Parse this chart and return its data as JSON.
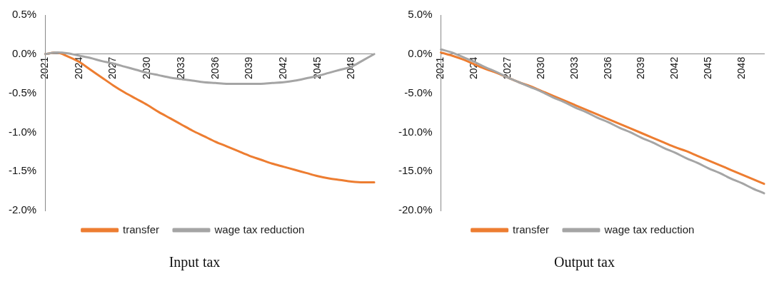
{
  "chart_data": [
    {
      "type": "line",
      "title": "Input tax",
      "categories": [
        "2021",
        null,
        null,
        "2024",
        null,
        null,
        "2027",
        null,
        null,
        "2030",
        null,
        null,
        "2033",
        null,
        null,
        "2036",
        null,
        null,
        "2039",
        null,
        null,
        "2042",
        null,
        null,
        "2045",
        null,
        null,
        "2048",
        null,
        null
      ],
      "series": [
        {
          "name": "transfer",
          "color": "#ed7d31",
          "values": [
            0,
            0.02,
            -0.03,
            -0.1,
            -0.2,
            -0.3,
            -0.4,
            -0.49,
            -0.57,
            -0.65,
            -0.74,
            -0.82,
            -0.9,
            -0.98,
            -1.05,
            -1.12,
            -1.18,
            -1.24,
            -1.3,
            -1.35,
            -1.4,
            -1.44,
            -1.48,
            -1.52,
            -1.56,
            -1.59,
            -1.61,
            -1.63,
            -1.64,
            -1.64
          ]
        },
        {
          "name": "wage tax reduction",
          "color": "#a5a5a5",
          "values": [
            0,
            0.02,
            0.01,
            -0.02,
            -0.05,
            -0.09,
            -0.12,
            -0.16,
            -0.2,
            -0.24,
            -0.27,
            -0.3,
            -0.32,
            -0.34,
            -0.36,
            -0.37,
            -0.38,
            -0.38,
            -0.38,
            -0.38,
            -0.37,
            -0.36,
            -0.34,
            -0.31,
            -0.28,
            -0.24,
            -0.2,
            -0.16,
            -0.08,
            0
          ]
        }
      ],
      "ylim": [
        -2,
        0.5
      ],
      "yticks": [
        {
          "value": -2,
          "label": "-2.0%"
        },
        {
          "value": -1.5,
          "label": "-1.5%"
        },
        {
          "value": -1,
          "label": "-1.0%"
        },
        {
          "value": -0.5,
          "label": "-0.5%"
        },
        {
          "value": 0,
          "label": "0.0%"
        },
        {
          "value": 0.5,
          "label": "0.5%"
        }
      ],
      "grid": false,
      "legend": "bottom",
      "marker": "none"
    },
    {
      "type": "line",
      "title": "Output tax",
      "categories": [
        "2021",
        null,
        null,
        "2024",
        null,
        null,
        "2027",
        null,
        null,
        "2030",
        null,
        null,
        "2033",
        null,
        null,
        "2036",
        null,
        null,
        "2039",
        null,
        null,
        "2042",
        null,
        null,
        "2045",
        null,
        null,
        "2048",
        null,
        null
      ],
      "series": [
        {
          "name": "transfer",
          "color": "#ed7d31",
          "values": [
            0.2,
            -0.2,
            -0.7,
            -1.3,
            -1.9,
            -2.4,
            -3.0,
            -3.6,
            -4.1,
            -4.7,
            -5.3,
            -5.9,
            -6.5,
            -7.1,
            -7.7,
            -8.3,
            -8.9,
            -9.5,
            -10.1,
            -10.7,
            -11.3,
            -11.9,
            -12.4,
            -13.0,
            -13.6,
            -14.2,
            -14.8,
            -15.4,
            -16.0,
            -16.6
          ]
        },
        {
          "name": "wage tax reduction",
          "color": "#a5a5a5",
          "values": [
            0.6,
            0.2,
            -0.4,
            -1.0,
            -1.7,
            -2.3,
            -3.0,
            -3.6,
            -4.2,
            -4.8,
            -5.5,
            -6.1,
            -6.8,
            -7.4,
            -8.1,
            -8.7,
            -9.4,
            -10.0,
            -10.7,
            -11.3,
            -12.0,
            -12.6,
            -13.3,
            -13.9,
            -14.6,
            -15.2,
            -15.9,
            -16.5,
            -17.2,
            -17.8
          ]
        }
      ],
      "ylim": [
        -20,
        5
      ],
      "yticks": [
        {
          "value": -20,
          "label": "-20.0%"
        },
        {
          "value": -15,
          "label": "-15.0%"
        },
        {
          "value": -10,
          "label": "-10.0%"
        },
        {
          "value": -5,
          "label": "-5.0%"
        },
        {
          "value": 0,
          "label": "0.0%"
        },
        {
          "value": 5,
          "label": "5.0%"
        }
      ],
      "grid": false,
      "legend": "bottom",
      "marker": "none"
    }
  ]
}
